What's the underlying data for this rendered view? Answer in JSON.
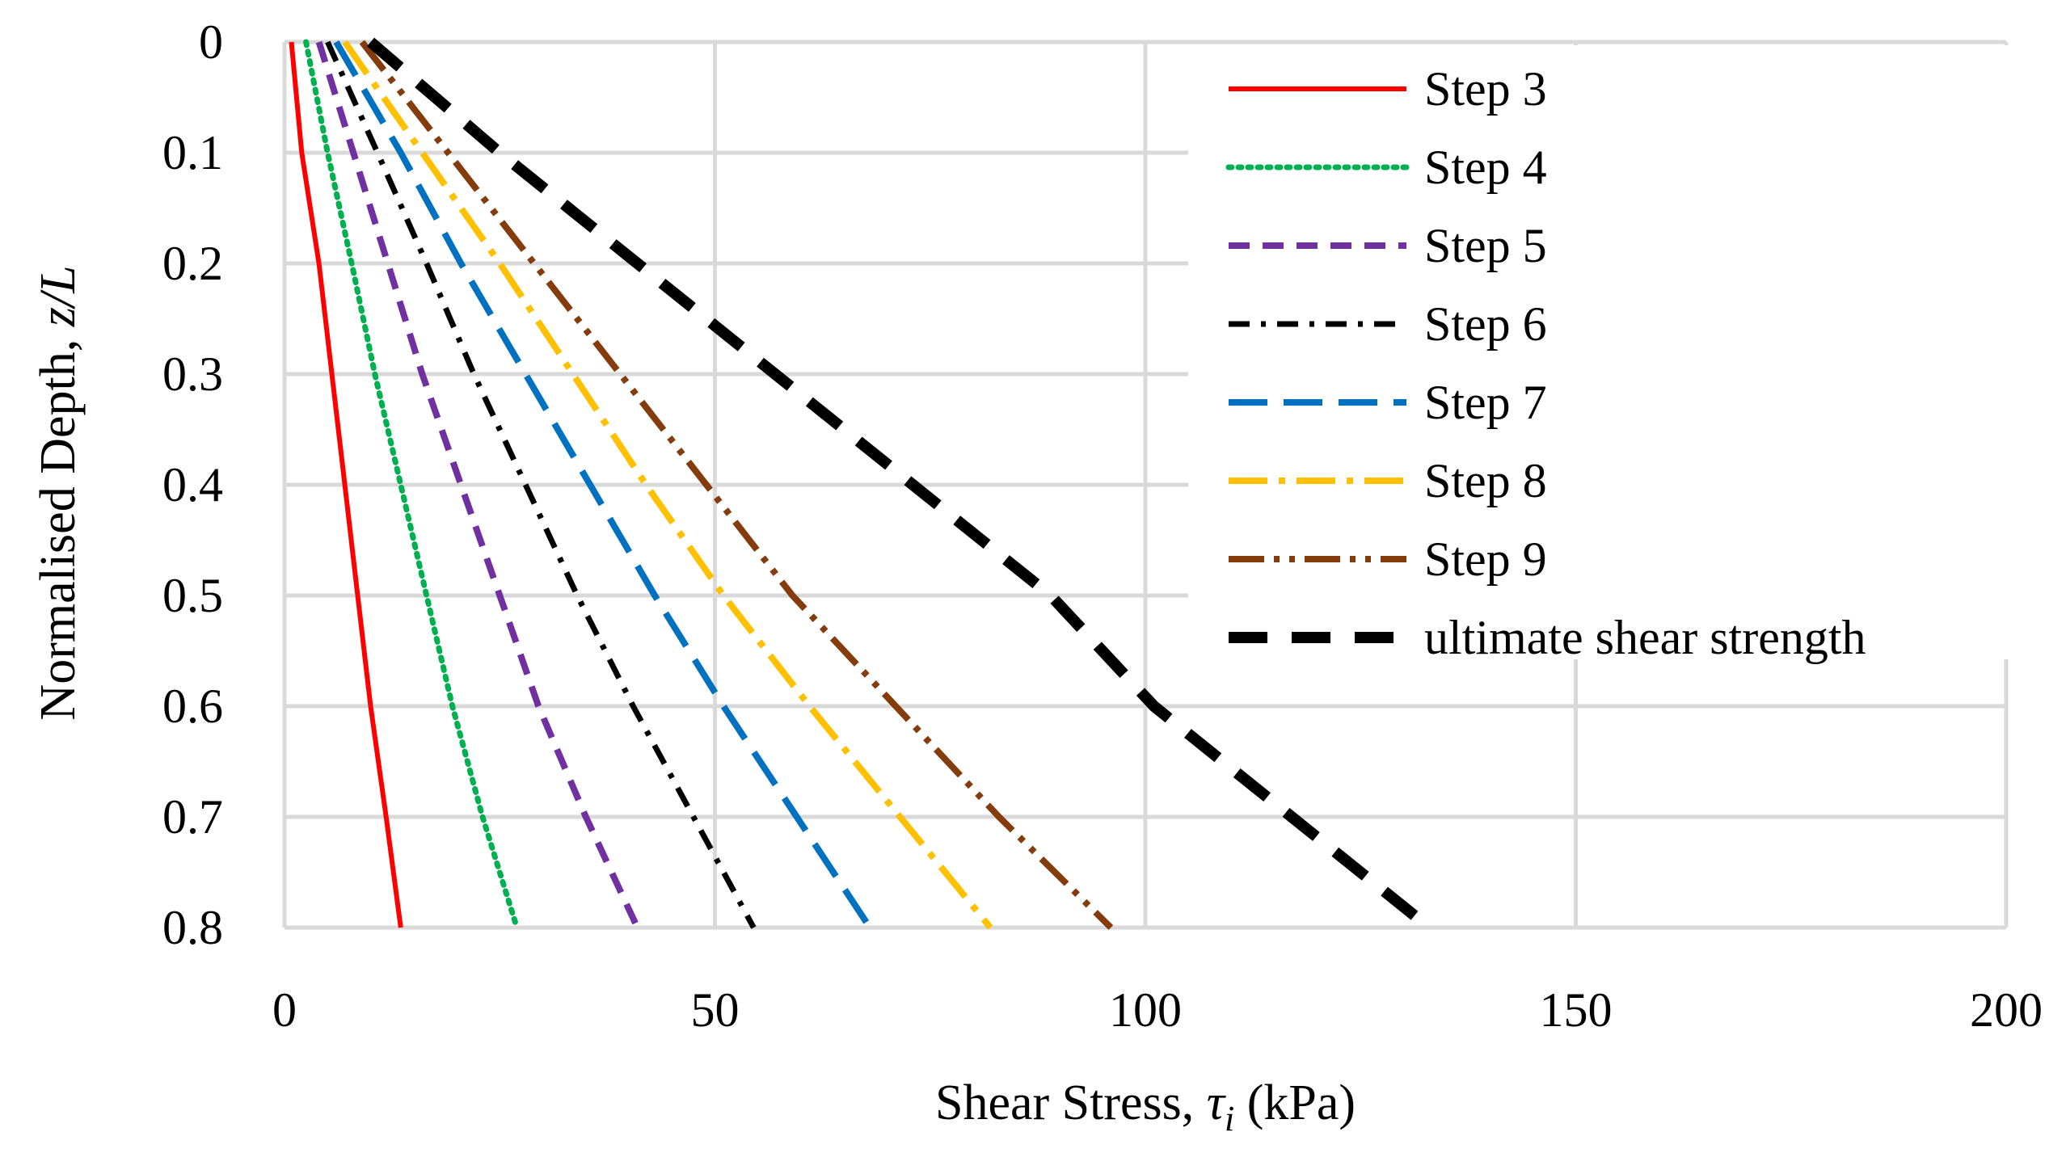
{
  "chart_data": {
    "type": "line",
    "title": "",
    "xlabel": {
      "prefix": "Shear Stress, ",
      "symbol": "τ",
      "subscript": "i",
      "suffix": " (kPa)"
    },
    "ylabel": {
      "prefix": "Normalised Depth, ",
      "italic": "z/L"
    },
    "xlim": [
      0,
      200
    ],
    "ylim": [
      0,
      0.8
    ],
    "y_inverted": true,
    "x_ticks": [
      0,
      50,
      100,
      150,
      200
    ],
    "y_ticks": [
      0,
      0.1,
      0.2,
      0.3,
      0.4,
      0.5,
      0.6,
      0.7,
      0.8
    ],
    "grid": true,
    "legend_position": "top-right",
    "series": [
      {
        "name": "Step 3",
        "color": "#ff0000",
        "style": "solid",
        "points": [
          [
            0.8,
            0
          ],
          [
            2,
            0.1
          ],
          [
            4,
            0.2
          ],
          [
            5.5,
            0.3
          ],
          [
            7,
            0.4
          ],
          [
            8.5,
            0.5
          ],
          [
            10,
            0.6
          ],
          [
            11.8,
            0.7
          ],
          [
            13.5,
            0.8
          ]
        ]
      },
      {
        "name": "Step 4",
        "color": "#00b050",
        "style": "dotted",
        "points": [
          [
            2.5,
            0
          ],
          [
            5,
            0.1
          ],
          [
            7.8,
            0.2
          ],
          [
            10.5,
            0.3
          ],
          [
            13.5,
            0.4
          ],
          [
            16.5,
            0.5
          ],
          [
            19.5,
            0.6
          ],
          [
            23,
            0.7
          ],
          [
            27,
            0.8
          ]
        ]
      },
      {
        "name": "Step 5",
        "color": "#7030a0",
        "style": "short-dash",
        "points": [
          [
            4,
            0
          ],
          [
            8,
            0.1
          ],
          [
            12,
            0.2
          ],
          [
            16,
            0.3
          ],
          [
            20.5,
            0.4
          ],
          [
            25,
            0.5
          ],
          [
            29.5,
            0.6
          ],
          [
            35,
            0.7
          ],
          [
            41,
            0.8
          ]
        ]
      },
      {
        "name": "Step 6",
        "color": "#000000",
        "style": "dash-dot",
        "points": [
          [
            5,
            0
          ],
          [
            10.8,
            0.1
          ],
          [
            16.5,
            0.2
          ],
          [
            22,
            0.3
          ],
          [
            28,
            0.4
          ],
          [
            34,
            0.5
          ],
          [
            40.5,
            0.6
          ],
          [
            47.5,
            0.7
          ],
          [
            54.5,
            0.8
          ]
        ]
      },
      {
        "name": "Step 7",
        "color": "#0070c0",
        "style": "long-dash",
        "points": [
          [
            6,
            0
          ],
          [
            13.5,
            0.1
          ],
          [
            20.5,
            0.2
          ],
          [
            28,
            0.3
          ],
          [
            35.5,
            0.4
          ],
          [
            43,
            0.5
          ],
          [
            51,
            0.6
          ],
          [
            59.5,
            0.7
          ],
          [
            68,
            0.8
          ]
        ]
      },
      {
        "name": "Step 8",
        "color": "#ffc000",
        "style": "long-dash-dot",
        "points": [
          [
            7,
            0
          ],
          [
            16,
            0.1
          ],
          [
            25,
            0.2
          ],
          [
            33.5,
            0.3
          ],
          [
            42,
            0.4
          ],
          [
            51,
            0.5
          ],
          [
            61,
            0.6
          ],
          [
            71.5,
            0.7
          ],
          [
            82,
            0.8
          ]
        ]
      },
      {
        "name": "Step 9",
        "color": "#843c0c",
        "style": "long-dash-dot-dot",
        "points": [
          [
            9,
            0
          ],
          [
            19,
            0.1
          ],
          [
            29,
            0.2
          ],
          [
            39,
            0.3
          ],
          [
            49,
            0.4
          ],
          [
            59,
            0.5
          ],
          [
            71,
            0.6
          ],
          [
            83,
            0.7
          ],
          [
            96,
            0.8
          ]
        ]
      },
      {
        "name": "ultimate shear strength",
        "color": "#000000",
        "style": "heavy-dash",
        "points": [
          [
            10,
            0
          ],
          [
            25,
            0.1
          ],
          [
            41,
            0.2
          ],
          [
            57,
            0.3
          ],
          [
            73,
            0.4
          ],
          [
            89,
            0.5
          ],
          [
            101,
            0.6
          ],
          [
            117,
            0.7
          ],
          [
            133,
            0.8
          ]
        ]
      }
    ]
  }
}
